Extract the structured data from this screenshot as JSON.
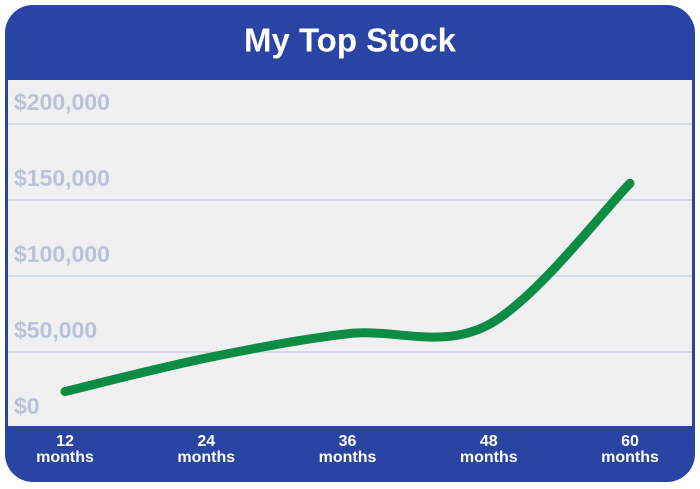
{
  "chart_data": {
    "type": "line",
    "title": "My Top Stock",
    "categories": [
      "12 months",
      "24 months",
      "36 months",
      "48 months",
      "60 months"
    ],
    "series": [
      {
        "name": "My Top Stock",
        "color": "#0c8c44",
        "values": [
          24000,
          46000,
          62000,
          68000,
          161000
        ]
      }
    ],
    "ylim": [
      0,
      200000
    ],
    "yticks": [
      {
        "value": 0,
        "label": "$0"
      },
      {
        "value": 50000,
        "label": "$50,000"
      },
      {
        "value": 100000,
        "label": "$100,000"
      },
      {
        "value": 150000,
        "label": "$150,000"
      },
      {
        "value": 200000,
        "label": "$200,000"
      }
    ],
    "grid": true
  }
}
